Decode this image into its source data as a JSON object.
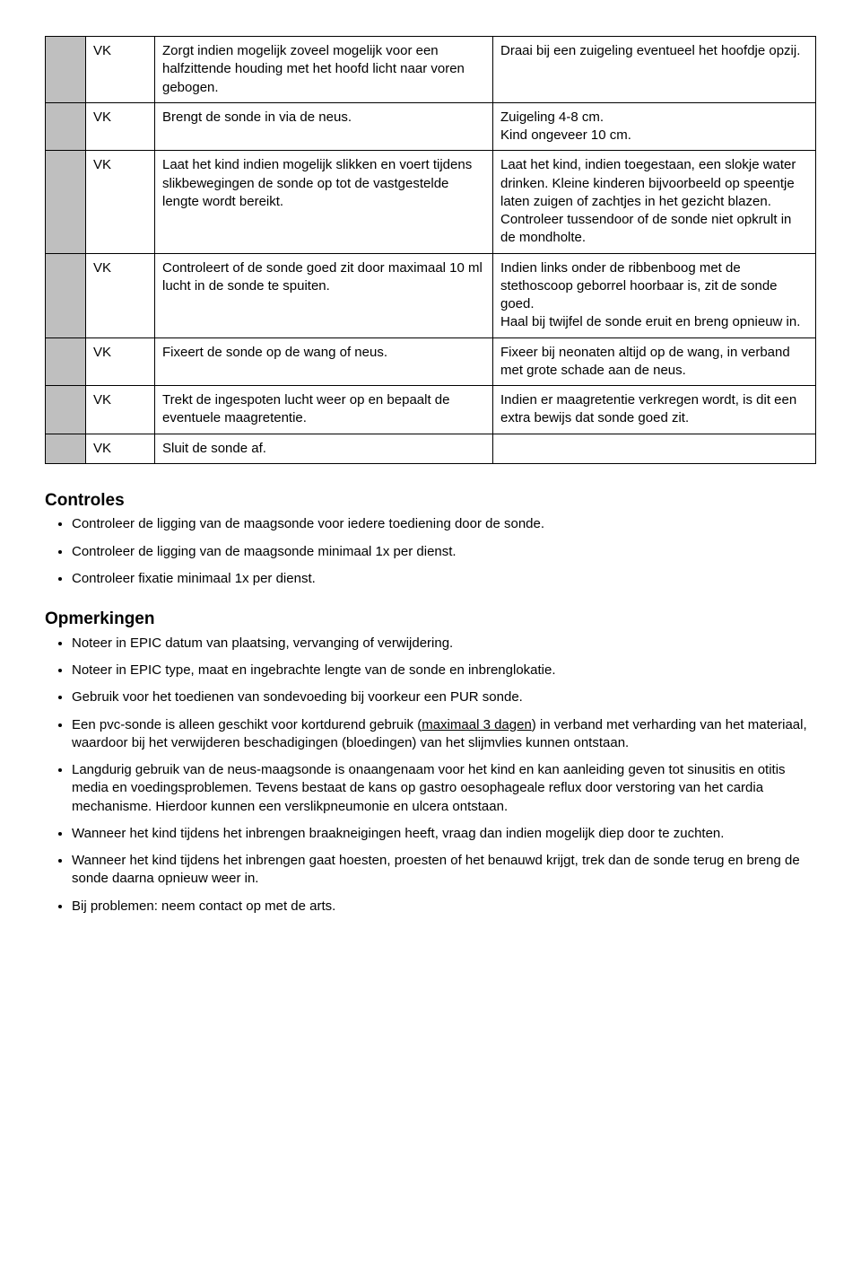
{
  "table": {
    "rows": [
      {
        "role": "VK",
        "action": "Zorgt indien mogelijk zoveel mogelijk voor een halfzittende houding met het hoofd licht naar voren gebogen.",
        "note": "Draai bij een zuigeling eventueel het hoofdje opzij."
      },
      {
        "role": "VK",
        "action": "Brengt de sonde in via de neus.",
        "note": "Zuigeling 4-8 cm.\nKind ongeveer 10 cm."
      },
      {
        "role": "VK",
        "action": "Laat het kind indien mogelijk slikken en voert tijdens slikbewegingen de sonde op tot de vastgestelde lengte wordt bereikt.",
        "note": "Laat het kind, indien toegestaan, een slokje water drinken. Kleine kinderen bijvoorbeeld op speentje laten zuigen of zachtjes in het gezicht blazen.\nControleer tussendoor of de sonde niet opkrult  in de mondholte."
      },
      {
        "role": "VK",
        "action": "Controleert of de sonde goed zit door maximaal 10 ml lucht in de sonde te spuiten.",
        "note": "Indien links onder de ribbenboog met de stethoscoop geborrel hoorbaar is, zit de sonde goed.\nHaal bij twijfel de sonde eruit en breng opnieuw in."
      },
      {
        "role": "VK",
        "action": "Fixeert de sonde op de wang of neus.",
        "note": "Fixeer bij neonaten altijd op de wang, in verband met grote schade aan de neus."
      },
      {
        "role": "VK",
        "action": "Trekt de ingespoten lucht weer op en bepaalt de eventuele maagretentie.",
        "note": "Indien er maagretentie verkregen wordt, is dit een extra bewijs dat sonde goed zit."
      },
      {
        "role": "VK",
        "action": "Sluit de sonde af.",
        "note": ""
      }
    ]
  },
  "controles": {
    "heading": "Controles",
    "items": [
      "Controleer de ligging van de maagsonde voor iedere toediening door de sonde.",
      "Controleer de ligging van de maagsonde minimaal 1x per dienst.",
      "Controleer fixatie minimaal 1x per dienst."
    ]
  },
  "opmerkingen": {
    "heading": "Opmerkingen",
    "items": [
      {
        "text": "Noteer in EPIC datum van plaatsing, vervanging of verwijdering."
      },
      {
        "text": "Noteer in EPIC type, maat en ingebrachte lengte van de sonde en inbrenglokatie."
      },
      {
        "text": "Gebruik voor het toedienen van sondevoeding bij voorkeur een PUR sonde."
      },
      {
        "pre": "Een pvc-sonde is alleen geschikt voor kortdurend gebruik (",
        "underline": "maximaal 3 dagen",
        "post": ") in verband met verharding van het materiaal, waardoor bij het verwijderen beschadigingen (bloedingen) van het slijmvlies kunnen ontstaan."
      },
      {
        "text": "Langdurig gebruik van de neus-maagsonde is onaangenaam voor het kind en kan aanleiding geven tot sinusitis en otitis media en voedingsproblemen. Tevens bestaat de kans op gastro oesophageale reflux door verstoring van het cardia mechanisme. Hierdoor kunnen een verslikpneumonie en ulcera ontstaan."
      },
      {
        "text": "Wanneer het kind tijdens het inbrengen braakneigingen heeft, vraag dan indien mogelijk diep door te zuchten."
      },
      {
        "text": "Wanneer het kind tijdens het inbrengen gaat hoesten, proesten of het benauwd krijgt, trek dan de sonde terug en breng de sonde daarna opnieuw weer in."
      },
      {
        "text": "Bij problemen: neem contact op met de arts."
      }
    ]
  }
}
